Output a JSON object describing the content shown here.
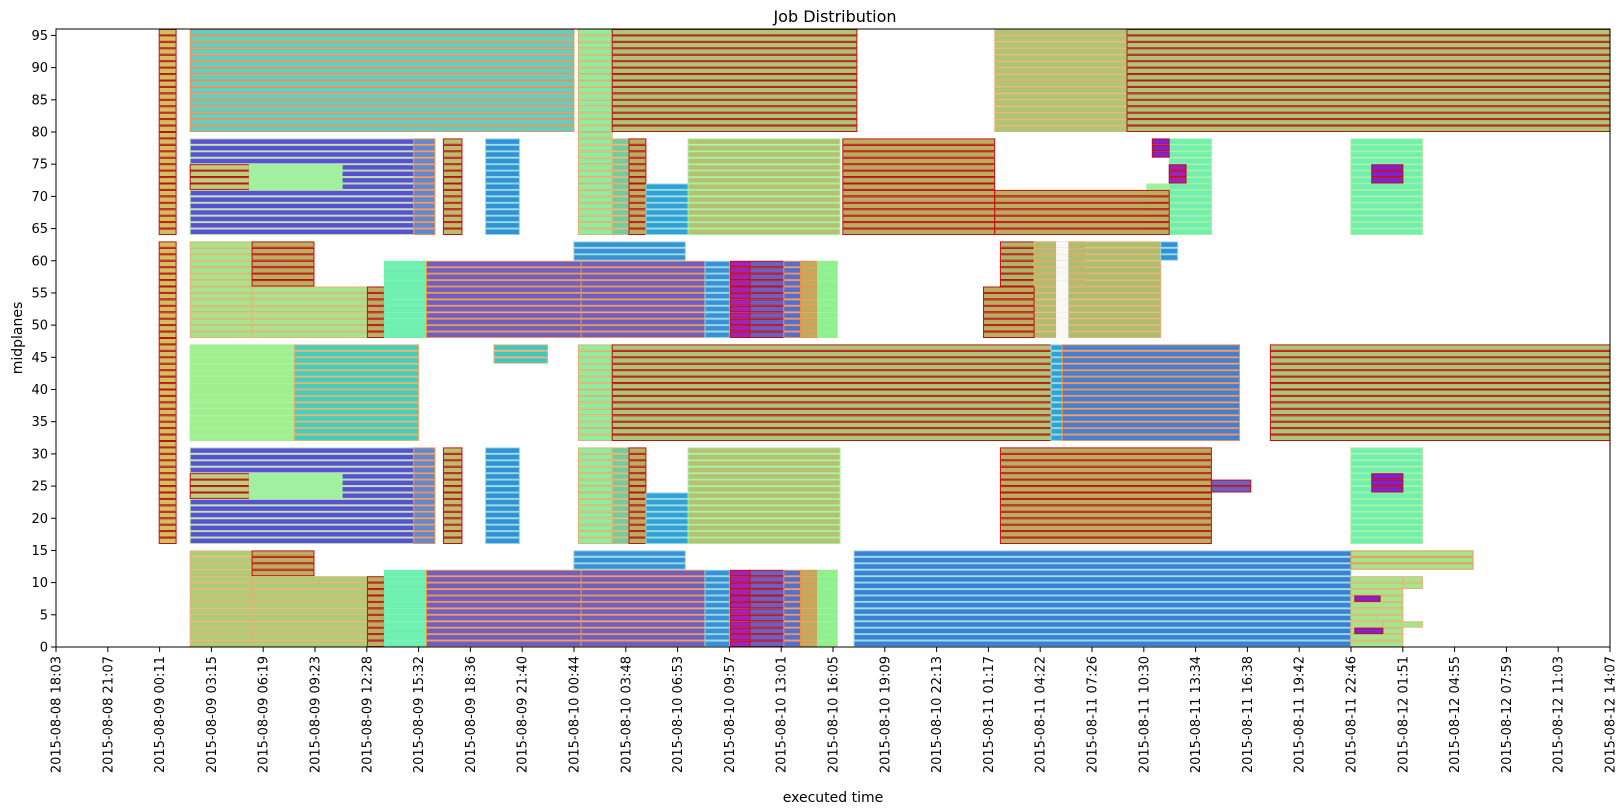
{
  "chart_data": {
    "type": "broken-barh",
    "title": "Job Distribution",
    "xlabel": "executed time",
    "ylabel": "midplanes",
    "x_ticks": [
      "2015-08-08 18:03",
      "2015-08-08 21:07",
      "2015-08-09 00:11",
      "2015-08-09 03:15",
      "2015-08-09 06:19",
      "2015-08-09 09:23",
      "2015-08-09 12:28",
      "2015-08-09 15:32",
      "2015-08-09 18:36",
      "2015-08-09 21:40",
      "2015-08-10 00:44",
      "2015-08-10 03:48",
      "2015-08-10 06:53",
      "2015-08-10 09:57",
      "2015-08-10 13:01",
      "2015-08-10 16:05",
      "2015-08-10 19:09",
      "2015-08-10 22:13",
      "2015-08-11 01:17",
      "2015-08-11 04:22",
      "2015-08-11 07:26",
      "2015-08-11 10:30",
      "2015-08-11 13:34",
      "2015-08-11 16:38",
      "2015-08-11 19:42",
      "2015-08-11 22:46",
      "2015-08-12 01:51",
      "2015-08-12 04:55",
      "2015-08-12 07:59",
      "2015-08-12 11:03",
      "2015-08-12 14:07"
    ],
    "xlim": [
      "2015-08-08 18:03",
      "2015-08-12 14:07"
    ],
    "y_ticks": [
      0,
      5,
      10,
      15,
      20,
      25,
      30,
      35,
      40,
      45,
      50,
      55,
      60,
      65,
      70,
      75,
      80,
      85,
      90,
      95
    ],
    "ylim": [
      0,
      96
    ],
    "grid": false,
    "jobs": [
      {
        "start": "2015-08-09 02:00",
        "end": "2015-08-10 00:44",
        "mp": [
          80,
          96
        ],
        "color": "#5fd0c8",
        "edge": "#f0904a"
      },
      {
        "start": "2015-08-09 02:00",
        "end": "2015-08-09 15:15",
        "mp": [
          64,
          79
        ],
        "color": "#5a4fd8",
        "edge": "#b8e0a0"
      },
      {
        "start": "2015-08-09 02:00",
        "end": "2015-08-09 05:30",
        "mp": [
          71,
          75
        ],
        "color": "#b8d080",
        "edge": "#c01010"
      },
      {
        "start": "2015-08-09 05:30",
        "end": "2015-08-09 11:00",
        "mp": [
          71,
          75
        ],
        "color": "#a0f0a0",
        "edge": "#a0f0a0"
      },
      {
        "start": "2015-08-09 15:15",
        "end": "2015-08-09 16:30",
        "mp": [
          64,
          79
        ],
        "color": "#5a8ad8",
        "edge": "#f0904a"
      },
      {
        "start": "2015-08-09 17:00",
        "end": "2015-08-09 18:06",
        "mp": [
          64,
          79
        ],
        "color": "#b8c070",
        "edge": "#c01010"
      },
      {
        "start": "2015-08-09 19:30",
        "end": "2015-08-09 21:30",
        "mp": [
          64,
          79
        ],
        "color": "#3090d8",
        "edge": "#90d8d8"
      },
      {
        "start": "2015-08-09 02:00",
        "end": "2015-08-09 05:40",
        "mp": [
          48,
          63
        ],
        "color": "#a0e890",
        "edge": "#e8b070"
      },
      {
        "start": "2015-08-09 05:40",
        "end": "2015-08-09 09:20",
        "mp": [
          56,
          63
        ],
        "color": "#b8b060",
        "edge": "#c01010"
      },
      {
        "start": "2015-08-09 05:40",
        "end": "2015-08-09 12:30",
        "mp": [
          48,
          56
        ],
        "color": "#a0e890",
        "edge": "#e8b070"
      },
      {
        "start": "2015-08-09 12:30",
        "end": "2015-08-09 13:30",
        "mp": [
          48,
          56
        ],
        "color": "#b8b060",
        "edge": "#c01010"
      },
      {
        "start": "2015-08-09 13:30",
        "end": "2015-08-09 16:00",
        "mp": [
          48,
          60
        ],
        "color": "#70f0b0",
        "edge": "#70f0b0"
      },
      {
        "start": "2015-08-09 16:00",
        "end": "2015-08-10 01:10",
        "mp": [
          48,
          60
        ],
        "color": "#6a60c8",
        "edge": "#f0904a"
      },
      {
        "start": "2015-08-10 00:44",
        "end": "2015-08-10 07:20",
        "mp": [
          60,
          63
        ],
        "color": "#3a90d8",
        "edge": "#90d8d8"
      },
      {
        "start": "2015-08-10 01:10",
        "end": "2015-08-10 08:30",
        "mp": [
          48,
          60
        ],
        "color": "#6a60c8",
        "edge": "#f0904a"
      },
      {
        "start": "2015-08-10 08:30",
        "end": "2015-08-10 09:57",
        "mp": [
          48,
          60
        ],
        "color": "#3a90d8",
        "edge": "#90d8d8"
      },
      {
        "start": "2015-08-10 10:00",
        "end": "2015-08-10 11:10",
        "mp": [
          48,
          60
        ],
        "color": "#a020c0",
        "edge": "#c01010"
      },
      {
        "start": "2015-08-10 11:10",
        "end": "2015-08-10 13:10",
        "mp": [
          48,
          60
        ],
        "color": "#6a60c8",
        "edge": "#c01010"
      },
      {
        "start": "2015-08-10 13:10",
        "end": "2015-08-10 14:10",
        "mp": [
          48,
          60
        ],
        "color": "#5070d8",
        "edge": "#f0904a"
      },
      {
        "start": "2015-08-10 14:10",
        "end": "2015-08-10 15:10",
        "mp": [
          48,
          60
        ],
        "color": "#b8b060",
        "edge": "#f0904a"
      },
      {
        "start": "2015-08-10 15:10",
        "end": "2015-08-10 16:20",
        "mp": [
          48,
          60
        ],
        "color": "#90f090",
        "edge": "#90f090"
      },
      {
        "start": "2015-08-10 01:00",
        "end": "2015-08-10 03:00",
        "mp": [
          64,
          96
        ],
        "color": "#88f0a0",
        "edge": "#e8b070"
      },
      {
        "start": "2015-08-10 03:00",
        "end": "2015-08-10 17:30",
        "mp": [
          80,
          96
        ],
        "color": "#a8c878",
        "edge": "#c01010"
      },
      {
        "start": "2015-08-10 03:00",
        "end": "2015-08-10 04:00",
        "mp": [
          64,
          79
        ],
        "color": "#6ad0a0",
        "edge": "#e8b070"
      },
      {
        "start": "2015-08-10 04:00",
        "end": "2015-08-10 05:00",
        "mp": [
          64,
          79
        ],
        "color": "#b8b060",
        "edge": "#c01010"
      },
      {
        "start": "2015-08-10 05:00",
        "end": "2015-08-10 07:30",
        "mp": [
          64,
          72
        ],
        "color": "#30a0d8",
        "edge": "#90d8d8"
      },
      {
        "start": "2015-08-10 07:30",
        "end": "2015-08-10 16:30",
        "mp": [
          64,
          79
        ],
        "color": "#b8c070",
        "edge": "#a0f0a0"
      },
      {
        "start": "2015-08-10 16:40",
        "end": "2015-08-11 01:40",
        "mp": [
          64,
          79
        ],
        "color": "#b8b060",
        "edge": "#c01010"
      },
      {
        "start": "2015-08-11 01:40",
        "end": "2015-08-11 09:30",
        "mp": [
          80,
          96
        ],
        "color": "#a8c878",
        "edge": "#e8b070"
      },
      {
        "start": "2015-08-11 09:30",
        "end": "2015-08-12 14:07",
        "mp": [
          80,
          96
        ],
        "color": "#a8c878",
        "edge": "#c01010"
      },
      {
        "start": "2015-08-11 02:00",
        "end": "2015-08-11 07:00",
        "mp": [
          56,
          63
        ],
        "color": "#a8b868",
        "edge": "#c01010"
      },
      {
        "start": "2015-08-11 04:00",
        "end": "2015-08-11 11:30",
        "mp": [
          48,
          63
        ],
        "color": "#a8c070",
        "edge": "#e8b070"
      },
      {
        "start": "2015-08-11 01:00",
        "end": "2015-08-11 04:00",
        "mp": [
          48,
          56
        ],
        "color": "#b8b060",
        "edge": "#c01010"
      },
      {
        "start": "2015-08-11 11:30",
        "end": "2015-08-11 12:30",
        "mp": [
          60,
          63
        ],
        "color": "#3090d8",
        "edge": "#90d8d8"
      },
      {
        "start": "2015-08-11 10:40",
        "end": "2015-08-11 14:30",
        "mp": [
          64,
          72
        ],
        "color": "#a0f0a0",
        "edge": "#a0f0a0"
      },
      {
        "start": "2015-08-11 12:00",
        "end": "2015-08-11 14:30",
        "mp": [
          64,
          79
        ],
        "color": "#70f0b0",
        "edge": "#a0f0a0"
      },
      {
        "start": "2015-08-11 01:40",
        "end": "2015-08-11 12:00",
        "mp": [
          64,
          71
        ],
        "color": "#b8b060",
        "edge": "#c01010"
      },
      {
        "start": "2015-08-11 12:00",
        "end": "2015-08-11 13:00",
        "mp": [
          72,
          75
        ],
        "color": "#a020c0",
        "edge": "#c01010"
      },
      {
        "start": "2015-08-11 11:00",
        "end": "2015-08-11 12:00",
        "mp": [
          76,
          79
        ],
        "color": "#8020d8",
        "edge": "#c01010"
      },
      {
        "start": "2015-08-09 02:00",
        "end": "2015-08-09 15:32",
        "mp": [
          32,
          47
        ],
        "color": "#a0f090",
        "edge": "#a0f090"
      },
      {
        "start": "2015-08-09 08:10",
        "end": "2015-08-09 15:32",
        "mp": [
          32,
          47
        ],
        "color": "#40d0c0",
        "edge": "#e8b070"
      },
      {
        "start": "2015-08-09 20:00",
        "end": "2015-08-09 23:10",
        "mp": [
          44,
          47
        ],
        "color": "#40c8c0",
        "edge": "#e8b070"
      },
      {
        "start": "2015-08-10 01:00",
        "end": "2015-08-10 03:00",
        "mp": [
          32,
          47
        ],
        "color": "#88f0a0",
        "edge": "#e8b070"
      },
      {
        "start": "2015-08-10 03:00",
        "end": "2015-08-11 05:00",
        "mp": [
          32,
          47
        ],
        "color": "#a8c878",
        "edge": "#c01010"
      },
      {
        "start": "2015-08-11 05:00",
        "end": "2015-08-11 05:40",
        "mp": [
          32,
          47
        ],
        "color": "#30a0d8",
        "edge": "#90d8d8"
      },
      {
        "start": "2015-08-11 05:40",
        "end": "2015-08-11 16:10",
        "mp": [
          32,
          47
        ],
        "color": "#4080d8",
        "edge": "#f0904a"
      },
      {
        "start": "2015-08-11 18:00",
        "end": "2015-08-12 14:07",
        "mp": [
          32,
          47
        ],
        "color": "#a8c878",
        "edge": "#c01010"
      },
      {
        "start": "2015-08-09 02:00",
        "end": "2015-08-09 15:15",
        "mp": [
          16,
          31
        ],
        "color": "#5a4fd8",
        "edge": "#b8e0a0"
      },
      {
        "start": "2015-08-09 02:00",
        "end": "2015-08-09 05:30",
        "mp": [
          23,
          27
        ],
        "color": "#b8d080",
        "edge": "#c01010"
      },
      {
        "start": "2015-08-09 05:30",
        "end": "2015-08-09 11:00",
        "mp": [
          23,
          27
        ],
        "color": "#a0f0a0",
        "edge": "#a0f0a0"
      },
      {
        "start": "2015-08-09 15:15",
        "end": "2015-08-09 16:30",
        "mp": [
          16,
          31
        ],
        "color": "#5a8ad8",
        "edge": "#f0904a"
      },
      {
        "start": "2015-08-09 17:00",
        "end": "2015-08-09 18:06",
        "mp": [
          16,
          31
        ],
        "color": "#b8c070",
        "edge": "#c01010"
      },
      {
        "start": "2015-08-09 19:30",
        "end": "2015-08-09 21:30",
        "mp": [
          16,
          31
        ],
        "color": "#3090d8",
        "edge": "#90d8d8"
      },
      {
        "start": "2015-08-10 01:00",
        "end": "2015-08-10 03:00",
        "mp": [
          16,
          31
        ],
        "color": "#88f0a0",
        "edge": "#e8b070"
      },
      {
        "start": "2015-08-10 03:00",
        "end": "2015-08-10 04:00",
        "mp": [
          16,
          31
        ],
        "color": "#6ad0a0",
        "edge": "#e8b070"
      },
      {
        "start": "2015-08-10 04:00",
        "end": "2015-08-10 05:00",
        "mp": [
          16,
          31
        ],
        "color": "#b8b060",
        "edge": "#c01010"
      },
      {
        "start": "2015-08-10 05:00",
        "end": "2015-08-10 07:30",
        "mp": [
          16,
          24
        ],
        "color": "#30a0d8",
        "edge": "#90d8d8"
      },
      {
        "start": "2015-08-10 07:30",
        "end": "2015-08-10 16:30",
        "mp": [
          16,
          31
        ],
        "color": "#b8c070",
        "edge": "#a0f0a0"
      },
      {
        "start": "2015-08-11 02:00",
        "end": "2015-08-11 14:30",
        "mp": [
          16,
          31
        ],
        "color": "#b8b060",
        "edge": "#c01010"
      },
      {
        "start": "2015-08-11 14:30",
        "end": "2015-08-11 16:50",
        "mp": [
          24,
          26
        ],
        "color": "#6a60c8",
        "edge": "#c01010"
      },
      {
        "start": "2015-08-11 22:46",
        "end": "2015-08-12 03:00",
        "mp": [
          16,
          31
        ],
        "color": "#70f0b0",
        "edge": "#a0f0a0"
      },
      {
        "start": "2015-08-12 00:00",
        "end": "2015-08-12 01:51",
        "mp": [
          24,
          27
        ],
        "color": "#8020d8",
        "edge": "#c01010"
      },
      {
        "start": "2015-08-11 22:46",
        "end": "2015-08-12 03:00",
        "mp": [
          64,
          79
        ],
        "color": "#70f0b0",
        "edge": "#a0f0a0"
      },
      {
        "start": "2015-08-12 00:00",
        "end": "2015-08-12 01:51",
        "mp": [
          72,
          75
        ],
        "color": "#8020d8",
        "edge": "#c01010"
      },
      {
        "start": "2015-08-09 02:00",
        "end": "2015-08-09 05:40",
        "mp": [
          0,
          15
        ],
        "color": "#a8d078",
        "edge": "#e8b070"
      },
      {
        "start": "2015-08-09 05:40",
        "end": "2015-08-09 09:20",
        "mp": [
          11,
          15
        ],
        "color": "#b8b060",
        "edge": "#c01010"
      },
      {
        "start": "2015-08-09 05:40",
        "end": "2015-08-09 12:30",
        "mp": [
          0,
          11
        ],
        "color": "#a8d078",
        "edge": "#e8b070"
      },
      {
        "start": "2015-08-09 12:30",
        "end": "2015-08-09 13:30",
        "mp": [
          0,
          11
        ],
        "color": "#b8b060",
        "edge": "#c01010"
      },
      {
        "start": "2015-08-09 13:30",
        "end": "2015-08-09 16:00",
        "mp": [
          0,
          12
        ],
        "color": "#70f0b0",
        "edge": "#70f0b0"
      },
      {
        "start": "2015-08-09 16:00",
        "end": "2015-08-10 01:10",
        "mp": [
          0,
          12
        ],
        "color": "#6a60c8",
        "edge": "#f0904a"
      },
      {
        "start": "2015-08-10 00:44",
        "end": "2015-08-10 07:20",
        "mp": [
          12,
          15
        ],
        "color": "#3a90d8",
        "edge": "#90d8d8"
      },
      {
        "start": "2015-08-10 01:10",
        "end": "2015-08-10 08:30",
        "mp": [
          0,
          12
        ],
        "color": "#6a60c8",
        "edge": "#f0904a"
      },
      {
        "start": "2015-08-10 08:30",
        "end": "2015-08-10 09:57",
        "mp": [
          0,
          12
        ],
        "color": "#3a90d8",
        "edge": "#90d8d8"
      },
      {
        "start": "2015-08-10 10:00",
        "end": "2015-08-10 11:10",
        "mp": [
          0,
          12
        ],
        "color": "#a020c0",
        "edge": "#c01010"
      },
      {
        "start": "2015-08-10 11:10",
        "end": "2015-08-10 13:10",
        "mp": [
          0,
          12
        ],
        "color": "#6a60c8",
        "edge": "#c01010"
      },
      {
        "start": "2015-08-10 13:10",
        "end": "2015-08-10 14:10",
        "mp": [
          0,
          12
        ],
        "color": "#5070d8",
        "edge": "#f0904a"
      },
      {
        "start": "2015-08-10 14:10",
        "end": "2015-08-10 15:10",
        "mp": [
          0,
          12
        ],
        "color": "#b8b060",
        "edge": "#f0904a"
      },
      {
        "start": "2015-08-10 15:10",
        "end": "2015-08-10 16:20",
        "mp": [
          0,
          12
        ],
        "color": "#90f090",
        "edge": "#90f090"
      },
      {
        "start": "2015-08-10 17:20",
        "end": "2015-08-11 22:46",
        "mp": [
          0,
          15
        ],
        "color": "#3a80d8",
        "edge": "#90d8d8"
      },
      {
        "start": "2015-08-11 22:46",
        "end": "2015-08-12 06:00",
        "mp": [
          12,
          15
        ],
        "color": "#a0e890",
        "edge": "#f0904a"
      },
      {
        "start": "2015-08-11 22:46",
        "end": "2015-08-12 01:51",
        "mp": [
          0,
          11
        ],
        "color": "#a0e890",
        "edge": "#e8b070"
      },
      {
        "start": "2015-08-12 01:51",
        "end": "2015-08-12 03:00",
        "mp": [
          9,
          11
        ],
        "color": "#a0e890",
        "edge": "#e8b070"
      },
      {
        "start": "2015-08-11 23:00",
        "end": "2015-08-12 00:30",
        "mp": [
          7,
          8
        ],
        "color": "#8020d8",
        "edge": "#c01010"
      },
      {
        "start": "2015-08-11 23:00",
        "end": "2015-08-12 00:40",
        "mp": [
          2,
          3
        ],
        "color": "#8020d8",
        "edge": "#c01010"
      },
      {
        "start": "2015-08-12 00:40",
        "end": "2015-08-12 03:00",
        "mp": [
          3,
          4
        ],
        "color": "#a0e890",
        "edge": "#e8b070"
      },
      {
        "start": "2015-08-09 00:10",
        "end": "2015-08-09 01:10",
        "mp": [
          16,
          63
        ],
        "color": "#d0c060",
        "edge": "#c01010"
      },
      {
        "start": "2015-08-09 00:10",
        "end": "2015-08-09 01:10",
        "mp": [
          64,
          96
        ],
        "color": "#d0c060",
        "edge": "#c01010"
      },
      {
        "start": "2015-08-11 05:20",
        "end": "2015-08-11 06:00",
        "mp": [
          48,
          63
        ],
        "color": "#f8f8f8",
        "edge": "#f8f8f8"
      }
    ]
  }
}
